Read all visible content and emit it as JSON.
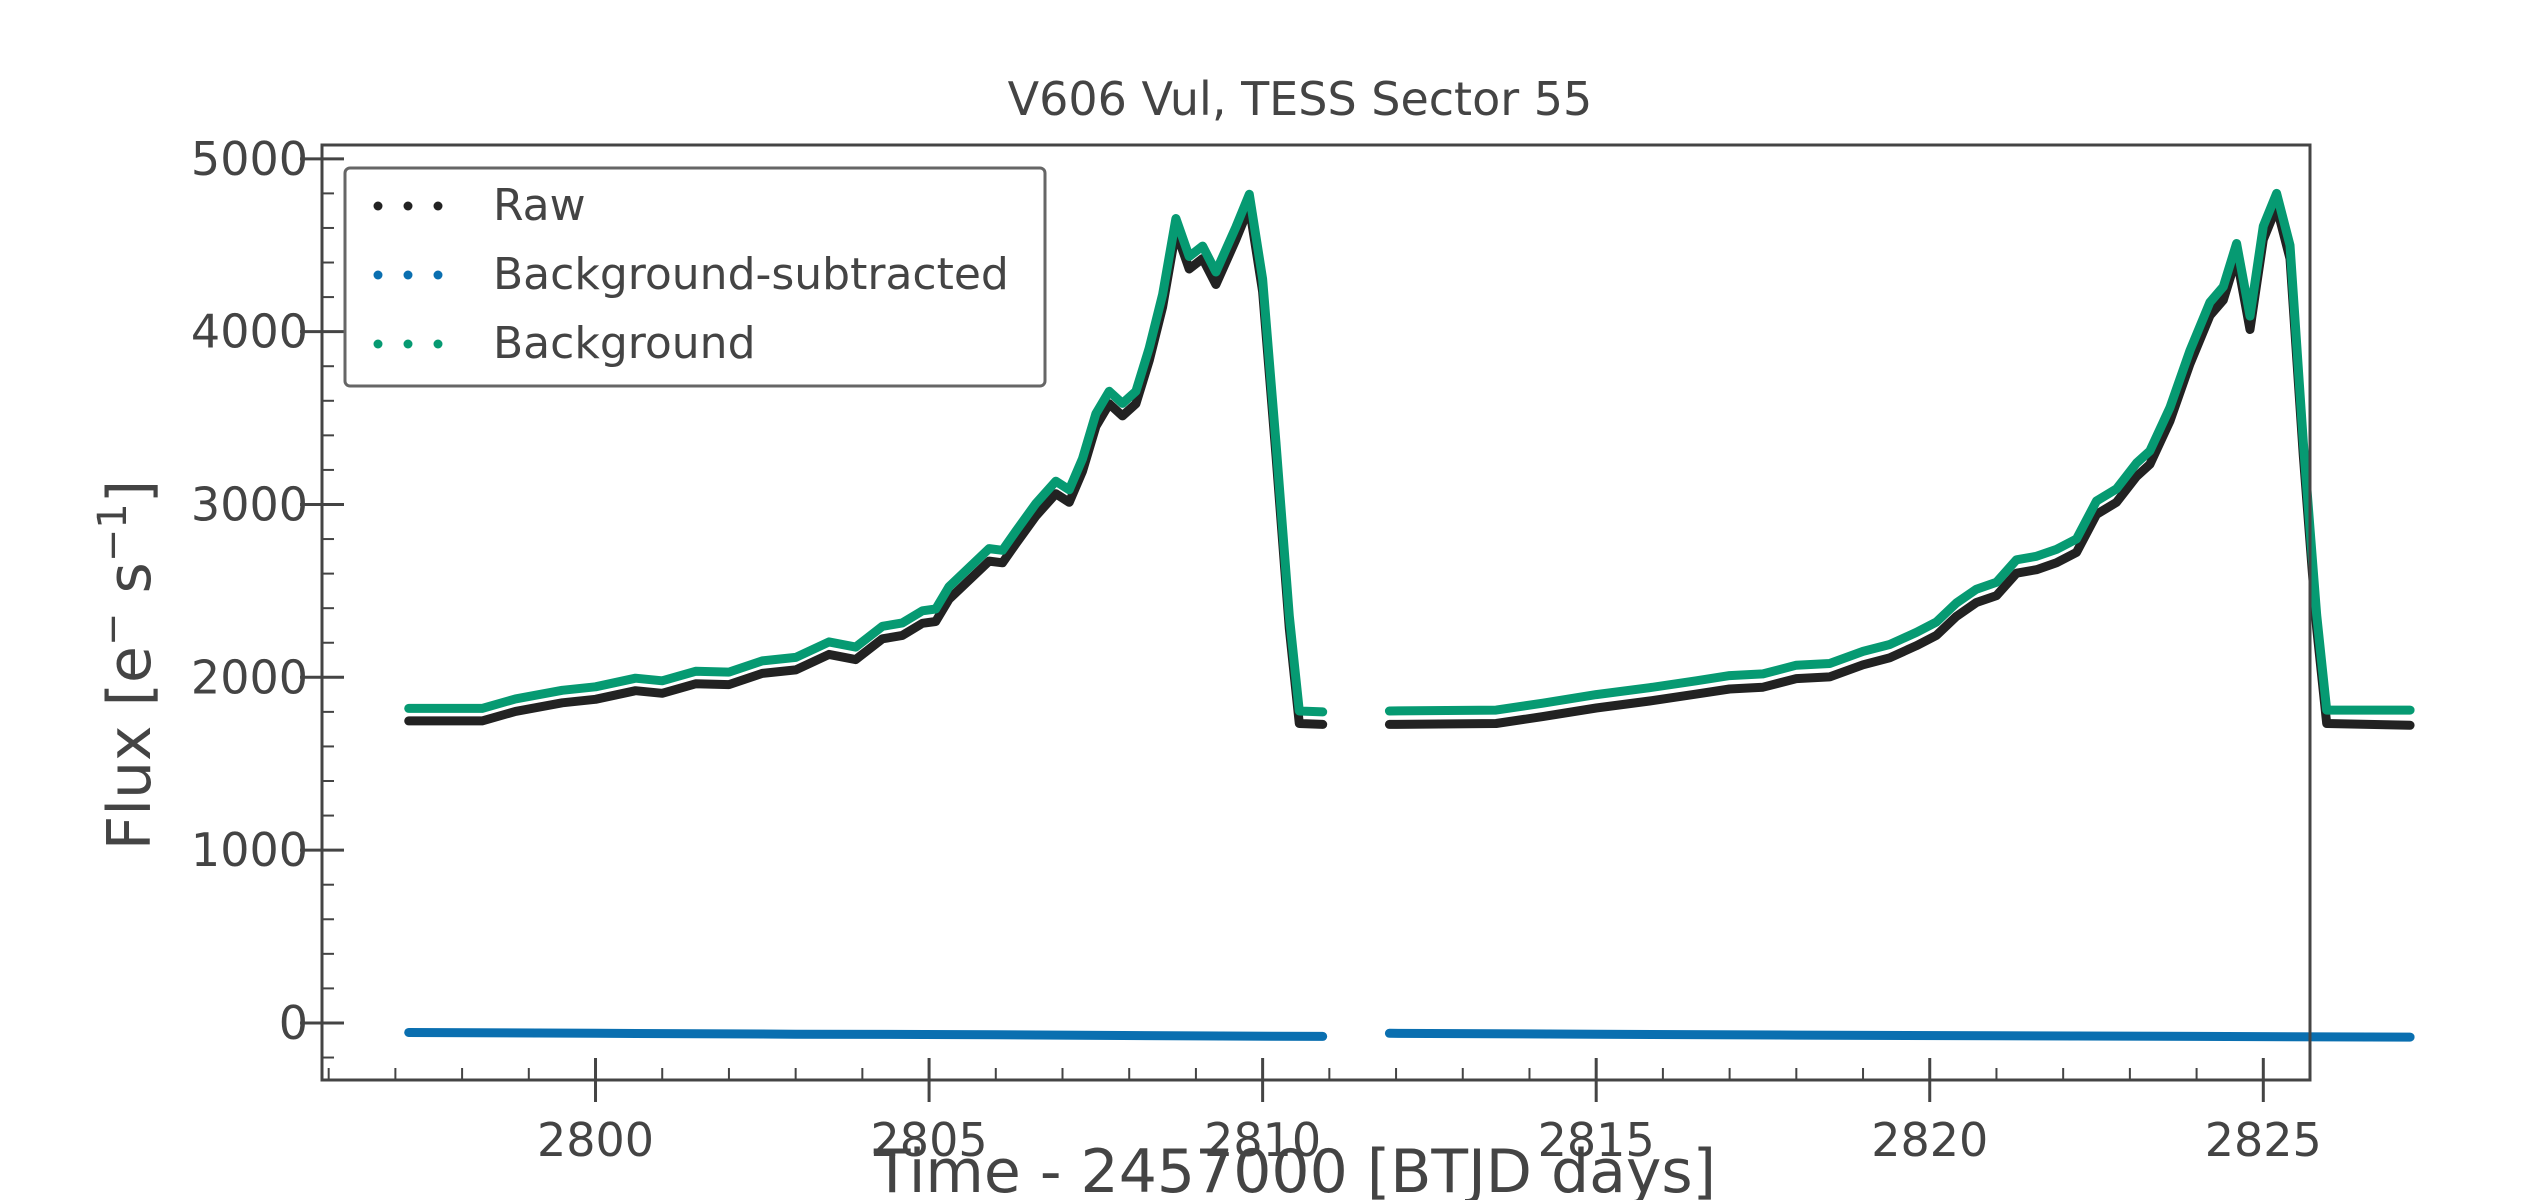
{
  "chart_data": {
    "type": "scatter",
    "title": "V606 Vul, TESS Sector 55",
    "xlabel": "Time - 2457000 [BTJD days]",
    "ylabel_main": "Flux [e",
    "ylabel_sup1": "−",
    "ylabel_mid": " s",
    "ylabel_sup2": "−1",
    "ylabel_end": "]",
    "xlim": [
      2795.9,
      2825.7
    ],
    "ylim": [
      -330,
      5080
    ],
    "xticks": [
      2800,
      2805,
      2810,
      2815,
      2820,
      2825
    ],
    "xtick_labels": [
      "2800",
      "2805",
      "2810",
      "2815",
      "2820",
      "2825"
    ],
    "yticks": [
      0,
      1000,
      2000,
      3000,
      4000,
      5000
    ],
    "ytick_labels": [
      "0",
      "1000",
      "2000",
      "3000",
      "4000",
      "5000"
    ],
    "grid": false,
    "legend_position": "top-left",
    "segments": [
      {
        "x_start": 2797.2,
        "x_end": 2809.9
      },
      {
        "x_start": 2810.9,
        "x_end": 2824.3
      }
    ],
    "series": [
      {
        "name": "Raw",
        "color": "#222222",
        "segments": [
          [
            [
              2797.2,
              1765
            ],
            [
              2798.3,
              1765
            ],
            [
              2798.8,
              1820
            ],
            [
              2799.5,
              1870
            ],
            [
              2800.0,
              1890
            ],
            [
              2800.6,
              1940
            ],
            [
              2801.0,
              1925
            ],
            [
              2801.5,
              1980
            ],
            [
              2802.0,
              1975
            ],
            [
              2802.5,
              2040
            ],
            [
              2803.0,
              2060
            ],
            [
              2803.5,
              2150
            ],
            [
              2803.9,
              2120
            ],
            [
              2804.3,
              2240
            ],
            [
              2804.6,
              2260
            ],
            [
              2804.9,
              2330
            ],
            [
              2805.1,
              2340
            ],
            [
              2805.3,
              2470
            ],
            [
              2805.6,
              2580
            ],
            [
              2805.9,
              2690
            ],
            [
              2806.1,
              2680
            ],
            [
              2806.3,
              2790
            ],
            [
              2806.6,
              2950
            ],
            [
              2806.9,
              3080
            ],
            [
              2807.1,
              3030
            ],
            [
              2807.3,
              3210
            ],
            [
              2807.5,
              3470
            ],
            [
              2807.7,
              3600
            ],
            [
              2807.9,
              3530
            ],
            [
              2808.1,
              3600
            ],
            [
              2808.3,
              3850
            ],
            [
              2808.5,
              4160
            ],
            [
              2808.7,
              4600
            ],
            [
              2808.9,
              4380
            ],
            [
              2809.1,
              4440
            ],
            [
              2809.3,
              4290
            ],
            [
              2809.6,
              4550
            ],
            [
              2809.8,
              4740
            ],
            [
              2810.0,
              4250
            ],
            [
              2810.2,
              3300
            ],
            [
              2810.4,
              2300
            ],
            [
              2810.55,
              1750
            ],
            [
              2810.9,
              1745
            ]
          ],
          [
            [
              2811.9,
              1745
            ],
            [
              2813.5,
              1750
            ],
            [
              2814.2,
              1790
            ],
            [
              2815.0,
              1840
            ],
            [
              2815.8,
              1880
            ],
            [
              2816.5,
              1920
            ],
            [
              2817.0,
              1950
            ],
            [
              2817.5,
              1960
            ],
            [
              2818.0,
              2010
            ],
            [
              2818.5,
              2020
            ],
            [
              2819.0,
              2090
            ],
            [
              2819.4,
              2130
            ],
            [
              2819.8,
              2200
            ],
            [
              2820.1,
              2260
            ],
            [
              2820.4,
              2370
            ],
            [
              2820.7,
              2450
            ],
            [
              2821.0,
              2490
            ],
            [
              2821.3,
              2620
            ],
            [
              2821.6,
              2640
            ],
            [
              2821.9,
              2680
            ],
            [
              2822.2,
              2740
            ],
            [
              2822.5,
              2960
            ],
            [
              2822.8,
              3030
            ],
            [
              2823.1,
              3180
            ],
            [
              2823.3,
              3250
            ],
            [
              2823.6,
              3500
            ],
            [
              2823.9,
              3830
            ],
            [
              2824.2,
              4110
            ],
            [
              2824.4,
              4200
            ],
            [
              2824.6,
              4450
            ],
            [
              2824.8,
              4030
            ],
            [
              2825.0,
              4550
            ],
            [
              2825.2,
              4740
            ],
            [
              2825.4,
              4440
            ],
            [
              2825.6,
              3300
            ],
            [
              2825.8,
              2300
            ],
            [
              2825.95,
              1750
            ],
            [
              2827.2,
              1740
            ]
          ]
        ]
      },
      {
        "name": "Background-subtracted",
        "color": "#0a6fb0",
        "segments": [
          [
            [
              2797.2,
              -55
            ],
            [
              2800.0,
              -60
            ],
            [
              2803.0,
              -65
            ],
            [
              2806.0,
              -68
            ],
            [
              2809.0,
              -75
            ],
            [
              2810.9,
              -78
            ]
          ],
          [
            [
              2811.9,
              -60
            ],
            [
              2815.0,
              -65
            ],
            [
              2818.0,
              -70
            ],
            [
              2821.0,
              -74
            ],
            [
              2824.0,
              -78
            ],
            [
              2827.2,
              -82
            ]
          ]
        ]
      },
      {
        "name": "Background",
        "color": "#069a72",
        "segments": [
          [
            [
              2797.2,
              1820
            ],
            [
              2798.3,
              1820
            ],
            [
              2798.8,
              1875
            ],
            [
              2799.5,
              1925
            ],
            [
              2800.0,
              1945
            ],
            [
              2800.6,
              1995
            ],
            [
              2801.0,
              1980
            ],
            [
              2801.5,
              2035
            ],
            [
              2802.0,
              2030
            ],
            [
              2802.5,
              2095
            ],
            [
              2803.0,
              2115
            ],
            [
              2803.5,
              2205
            ],
            [
              2803.9,
              2175
            ],
            [
              2804.3,
              2295
            ],
            [
              2804.6,
              2315
            ],
            [
              2804.9,
              2385
            ],
            [
              2805.1,
              2395
            ],
            [
              2805.3,
              2525
            ],
            [
              2805.6,
              2635
            ],
            [
              2805.9,
              2745
            ],
            [
              2806.1,
              2735
            ],
            [
              2806.3,
              2845
            ],
            [
              2806.6,
              3005
            ],
            [
              2806.9,
              3135
            ],
            [
              2807.1,
              3085
            ],
            [
              2807.3,
              3265
            ],
            [
              2807.5,
              3525
            ],
            [
              2807.7,
              3655
            ],
            [
              2807.9,
              3585
            ],
            [
              2808.1,
              3655
            ],
            [
              2808.3,
              3905
            ],
            [
              2808.5,
              4215
            ],
            [
              2808.7,
              4655
            ],
            [
              2808.9,
              4435
            ],
            [
              2809.1,
              4495
            ],
            [
              2809.3,
              4345
            ],
            [
              2809.6,
              4605
            ],
            [
              2809.8,
              4795
            ],
            [
              2810.0,
              4305
            ],
            [
              2810.2,
              3355
            ],
            [
              2810.4,
              2355
            ],
            [
              2810.55,
              1805
            ],
            [
              2810.9,
              1800
            ]
          ],
          [
            [
              2811.9,
              1805
            ],
            [
              2813.5,
              1810
            ],
            [
              2814.2,
              1850
            ],
            [
              2815.0,
              1900
            ],
            [
              2815.8,
              1940
            ],
            [
              2816.5,
              1980
            ],
            [
              2817.0,
              2010
            ],
            [
              2817.5,
              2020
            ],
            [
              2818.0,
              2070
            ],
            [
              2818.5,
              2080
            ],
            [
              2819.0,
              2150
            ],
            [
              2819.4,
              2190
            ],
            [
              2819.8,
              2260
            ],
            [
              2820.1,
              2320
            ],
            [
              2820.4,
              2430
            ],
            [
              2820.7,
              2510
            ],
            [
              2821.0,
              2550
            ],
            [
              2821.3,
              2680
            ],
            [
              2821.6,
              2700
            ],
            [
              2821.9,
              2740
            ],
            [
              2822.2,
              2800
            ],
            [
              2822.5,
              3020
            ],
            [
              2822.8,
              3090
            ],
            [
              2823.1,
              3240
            ],
            [
              2823.3,
              3310
            ],
            [
              2823.6,
              3560
            ],
            [
              2823.9,
              3890
            ],
            [
              2824.2,
              4170
            ],
            [
              2824.4,
              4260
            ],
            [
              2824.6,
              4510
            ],
            [
              2824.8,
              4090
            ],
            [
              2825.0,
              4610
            ],
            [
              2825.2,
              4800
            ],
            [
              2825.4,
              4500
            ],
            [
              2825.6,
              3360
            ],
            [
              2825.8,
              2360
            ],
            [
              2825.95,
              1810
            ],
            [
              2827.2,
              1810
            ]
          ]
        ]
      }
    ]
  }
}
